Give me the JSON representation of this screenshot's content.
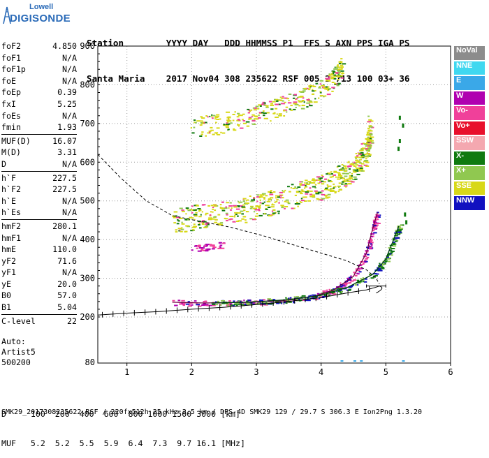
{
  "logo": {
    "brand_top": "Lowell",
    "brand_main": "DIGISONDE"
  },
  "header": {
    "line1": "Station        YYYY DAY   DDD HHMMSS P1  FFS S AXN PPS IGA PS",
    "line2": "Santa Maria    2017 Nov04 308 235622 RSF 005 2 713 100 03+ 36"
  },
  "params": {
    "group1": [
      {
        "name": "foF2",
        "value": "4.850"
      },
      {
        "name": "foF1",
        "value": "N/A"
      },
      {
        "name": "foF1p",
        "value": "N/A"
      },
      {
        "name": "foE",
        "value": "N/A"
      },
      {
        "name": "foEp",
        "value": "0.39"
      },
      {
        "name": "fxI",
        "value": "5.25"
      },
      {
        "name": "foEs",
        "value": "N/A"
      },
      {
        "name": "fmin",
        "value": "1.93"
      }
    ],
    "group2": [
      {
        "name": "MUF(D)",
        "value": "16.07"
      },
      {
        "name": "M(D)",
        "value": "3.31"
      },
      {
        "name": "D",
        "value": "N/A"
      }
    ],
    "group3": [
      {
        "name": "h`F",
        "value": "227.5"
      },
      {
        "name": "h`F2",
        "value": "227.5"
      },
      {
        "name": "h`E",
        "value": "N/A"
      },
      {
        "name": "h`Es",
        "value": "N/A"
      }
    ],
    "group4": [
      {
        "name": "hmF2",
        "value": "280.1"
      },
      {
        "name": "hmF1",
        "value": "N/A"
      },
      {
        "name": "hmE",
        "value": "110.0"
      },
      {
        "name": "yF2",
        "value": "71.6"
      },
      {
        "name": "yF1",
        "value": "N/A"
      },
      {
        "name": "yE",
        "value": "20.0"
      },
      {
        "name": "B0",
        "value": "57.0"
      },
      {
        "name": "B1",
        "value": "5.04"
      }
    ],
    "group5": [
      {
        "name": "C-level",
        "value": "22"
      }
    ]
  },
  "auto": {
    "line1": "Auto:",
    "line2": "Artist5",
    "line3": "500200"
  },
  "legend": [
    {
      "label": "NoVal",
      "color": "#8c8c8c"
    },
    {
      "label": "NNE",
      "color": "#40d8f0"
    },
    {
      "label": "E",
      "color": "#3aa8e8"
    },
    {
      "label": "W",
      "color": "#b000b0"
    },
    {
      "label": "Vo-",
      "color": "#f0409a"
    },
    {
      "label": "Vo+",
      "color": "#e8102c"
    },
    {
      "label": "SSW",
      "color": "#f4a8b0"
    },
    {
      "label": "X-",
      "color": "#107a10"
    },
    {
      "label": "X+",
      "color": "#90c850"
    },
    {
      "label": "SSE",
      "color": "#d8d818"
    },
    {
      "label": "NNW",
      "color": "#1010c0"
    }
  ],
  "chart_data": {
    "type": "scatter",
    "xlim": [
      0.55,
      6.0
    ],
    "ylim": [
      80,
      900
    ],
    "x_ticks": [
      "1",
      "2",
      "3",
      "4",
      "5",
      "6"
    ],
    "y_ticks": [
      "200",
      "300",
      "400",
      "500",
      "600",
      "700",
      "800",
      "900"
    ],
    "y_bottom_label": "80",
    "series": [
      {
        "name": "Vo-",
        "points": [
          [
            1.7,
            238
          ],
          [
            2.2,
            236
          ],
          [
            2.8,
            238
          ],
          [
            3.4,
            242
          ],
          [
            3.9,
            254
          ],
          [
            4.2,
            270
          ],
          [
            4.5,
            305
          ],
          [
            4.7,
            365
          ],
          [
            4.8,
            430
          ],
          [
            4.87,
            470
          ]
        ]
      },
      {
        "name": "X-",
        "points": [
          [
            2.3,
            236
          ],
          [
            2.9,
            238
          ],
          [
            3.5,
            245
          ],
          [
            4.0,
            256
          ],
          [
            4.4,
            276
          ],
          [
            4.8,
            310
          ],
          [
            5.0,
            350
          ],
          [
            5.12,
            400
          ],
          [
            5.2,
            435
          ]
        ]
      },
      {
        "name": "trace-curve",
        "points": [
          [
            0.55,
            205
          ],
          [
            1.0,
            210
          ],
          [
            1.5,
            214
          ],
          [
            2.0,
            220
          ],
          [
            2.5,
            225
          ],
          [
            3.0,
            232
          ],
          [
            3.5,
            240
          ],
          [
            4.0,
            250
          ],
          [
            4.4,
            262
          ],
          [
            4.7,
            270
          ],
          [
            4.85,
            277
          ],
          [
            4.9,
            280
          ]
        ]
      },
      {
        "name": "profile-curve",
        "points": [
          [
            0.55,
            620
          ],
          [
            0.9,
            560
          ],
          [
            1.3,
            500
          ],
          [
            1.7,
            462
          ],
          [
            2.1,
            448
          ],
          [
            2.6,
            432
          ],
          [
            3.1,
            410
          ],
          [
            3.6,
            385
          ],
          [
            4.0,
            365
          ],
          [
            4.4,
            345
          ],
          [
            4.7,
            322
          ],
          [
            4.85,
            300
          ],
          [
            4.9,
            285
          ]
        ]
      }
    ]
  },
  "dm_table": {
    "row1": "D     100  200  400  600  800 1000 1500 3000 [km]",
    "row2": "MUF   5.2  5.2  5.5  5.9  6.4  7.3  9.7 16.1 [MHz]"
  },
  "footer": {
    "text": "SMK29_2017308235622.RSF / 220fx512h 25 kHz 2.5 km / DPS-4D SMK29 129 / 29.7 S 306.3 E Ion2Png 1.3.20"
  }
}
